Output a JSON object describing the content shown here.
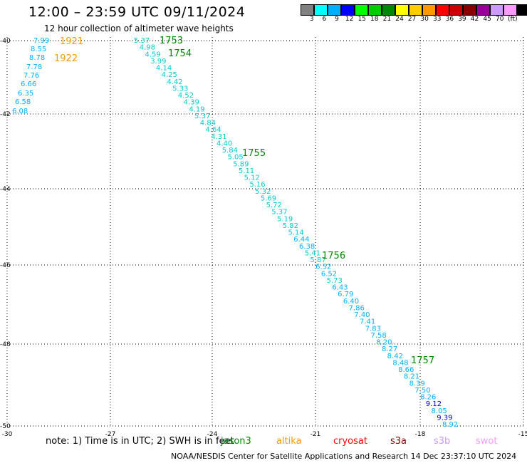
{
  "header": {
    "title": "12:00 – 23:59 UTC 09/11/2024",
    "subtitle": "12 hour collection of altimeter wave heights"
  },
  "colorbar": {
    "colors": [
      "#808080",
      "#00ffff",
      "#00b0ff",
      "#0000ff",
      "#00ff00",
      "#00cc00",
      "#008800",
      "#ffff00",
      "#ffcc00",
      "#ff9900",
      "#ff0000",
      "#cc0000",
      "#880000",
      "#990099",
      "#cc99ff",
      "#ff99ff",
      "#000000"
    ],
    "labels": [
      "3",
      "6",
      "9",
      "12",
      "15",
      "18",
      "21",
      "24",
      "27",
      "30",
      "33",
      "36",
      "39",
      "42",
      "45",
      "70"
    ],
    "unit": "(ft)"
  },
  "axes": {
    "lon_ticks": [
      "-30",
      "-27",
      "-24",
      "-21",
      "-18",
      "-15"
    ],
    "lat_ticks": [
      "-40",
      "-42",
      "-44",
      "-46",
      "-48",
      "-50"
    ]
  },
  "tracks": {
    "west": {
      "color": "#00b0ff",
      "values": [
        "7.99",
        "8.55",
        "8.78",
        "7.78",
        "7.76",
        "6.66",
        "6.35",
        "6.58",
        "6.08"
      ]
    },
    "main": {
      "values": [
        "5.37",
        "4.98",
        "4.59",
        "3.99",
        "4.14",
        "4.25",
        "4.42",
        "5.33",
        "4.52",
        "4.39",
        "4.19",
        "5.37",
        "4.84",
        "4.64",
        "4.31",
        "4.40",
        "5.84",
        "5.05",
        "5.89",
        "5.11",
        "5.12",
        "5.16",
        "5.32",
        "5.69",
        "5.72",
        "5.37",
        "5.19",
        "5.82",
        "5.14",
        "6.44",
        "6.38",
        "5.41",
        "5.87",
        "6.52",
        "6.52",
        "5.73",
        "6.43",
        "6.79",
        "6.40",
        "7.86",
        "7.40",
        "7.41",
        "7.83",
        "7.58",
        "8.20",
        "8.27",
        "8.42",
        "8.48",
        "8.66",
        "8.21",
        "8.39",
        "7.50",
        "8.26",
        "9.12",
        "8.05",
        "9.39",
        "8.92"
      ]
    }
  },
  "times": [
    {
      "label": "1921",
      "color": "#ff9900"
    },
    {
      "label": "1922",
      "color": "#ff9900"
    },
    {
      "label": "1753",
      "color": "#008800"
    },
    {
      "label": "1754",
      "color": "#008800"
    },
    {
      "label": "1755",
      "color": "#008800"
    },
    {
      "label": "1756",
      "color": "#008800"
    },
    {
      "label": "1757",
      "color": "#008800"
    }
  ],
  "note": "note:  1) Time is in UTC; 2) SWH is in feet",
  "legend": [
    {
      "label": "jason3",
      "color": "#008800"
    },
    {
      "label": "altika",
      "color": "#ff9900"
    },
    {
      "label": "cryosat",
      "color": "#ff0000"
    },
    {
      "label": "s3a",
      "color": "#880000"
    },
    {
      "label": "s3b",
      "color": "#cc99ff"
    },
    {
      "label": "swot",
      "color": "#ff99ff"
    }
  ],
  "footer": "NOAA/NESDIS Center for Satellite Applications and Research    14 Dec 23:37:10 UTC 2024"
}
